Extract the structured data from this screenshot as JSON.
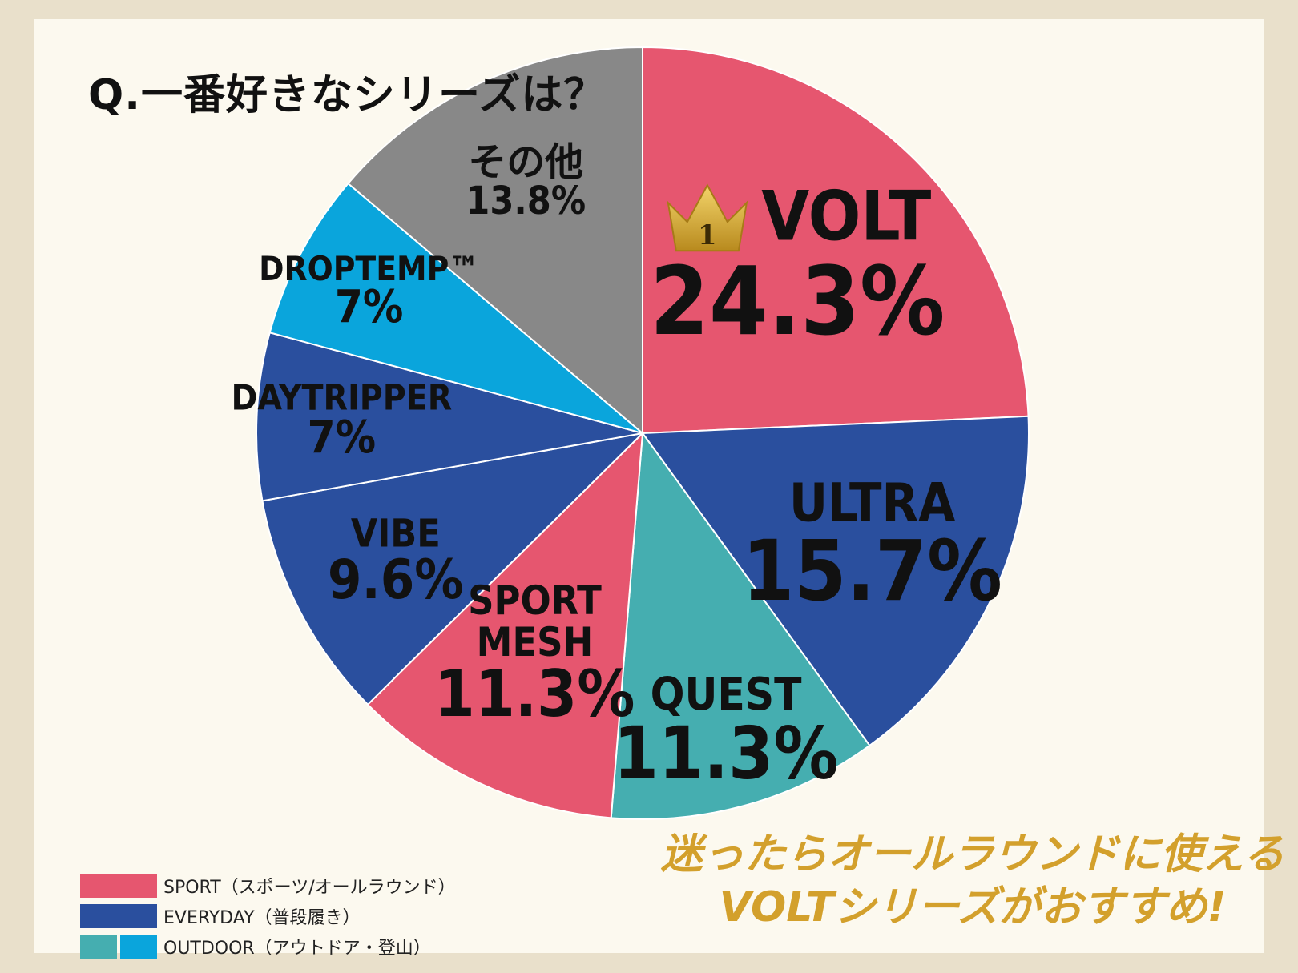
{
  "title": "Q.一番好きなシリーズは？",
  "chart_data": {
    "type": "pie",
    "start_angle_deg": 0,
    "direction": "clockwise",
    "slices": [
      {
        "name": "VOLT",
        "label": "VOLT",
        "pct_label": "24.3%",
        "value": 24.3,
        "color": "#e6566f",
        "category": "SPORT",
        "badge": "1"
      },
      {
        "name": "ULTRA",
        "label": "ULTRA",
        "pct_label": "15.7%",
        "value": 15.7,
        "color": "#2a4f9e",
        "category": "EVERYDAY"
      },
      {
        "name": "QUEST",
        "label": "QUEST",
        "pct_label": "11.3%",
        "value": 11.3,
        "color": "#45aeb0",
        "category": "OUTDOOR"
      },
      {
        "name": "SPORT MESH",
        "label": "SPORT\nMESH",
        "pct_label": "11.3%",
        "value": 11.3,
        "color": "#e6566f",
        "category": "SPORT"
      },
      {
        "name": "VIBE",
        "label": "VIBE",
        "pct_label": "9.6%",
        "value": 9.6,
        "color": "#2a4f9e",
        "category": "EVERYDAY"
      },
      {
        "name": "DAYTRIPPER",
        "label": "DAYTRIPPER",
        "pct_label": "7%",
        "value": 7,
        "color": "#2a4f9e",
        "category": "EVERYDAY"
      },
      {
        "name": "DROPTEMP™",
        "label": "DROPTEMP™",
        "pct_label": "7%",
        "value": 7,
        "color": "#0aa5dc",
        "category": "OUTDOOR"
      },
      {
        "name": "その他",
        "label": "その他",
        "pct_label": "13.8%",
        "value": 13.8,
        "color": "#888888",
        "category": "other"
      }
    ]
  },
  "legend": [
    {
      "text": "SPORT（スポーツ/オールラウンド）",
      "colors": [
        "#e6566f"
      ]
    },
    {
      "text": "EVERYDAY（普段履き）",
      "colors": [
        "#2a4f9e"
      ]
    },
    {
      "text": "OUTDOOR（アウトドア・登山）",
      "colors": [
        "#45aeb0",
        "#0aa5dc"
      ]
    }
  ],
  "recommendation": {
    "line1": "迷ったらオールラウンドに使える",
    "line2": "VOLTシリーズがおすすめ!"
  },
  "colors": {
    "accent": "#d3a02c",
    "background": "#fcf9ef",
    "frame": "#e9e0cb"
  }
}
